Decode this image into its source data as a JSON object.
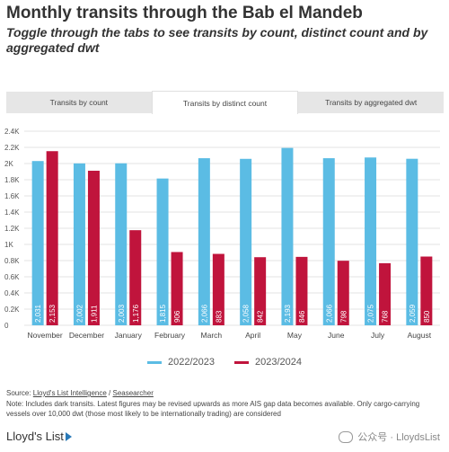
{
  "title": "Monthly transits through the Bab el Mandeb",
  "subtitle": "Toggle through the tabs to see transits by count, distinct count and by aggregated dwt",
  "tabs": [
    {
      "label": "Transits by count"
    },
    {
      "label": "Transits by distinct count"
    },
    {
      "label": "Transits by aggregated dwt"
    }
  ],
  "active_tab": 1,
  "colors": {
    "series_2022_2023": "#5bbce4",
    "series_2023_2024": "#c0143c"
  },
  "chart_data": {
    "type": "bar",
    "categories": [
      "November",
      "December",
      "January",
      "February",
      "March",
      "April",
      "May",
      "June",
      "July",
      "August"
    ],
    "series": [
      {
        "name": "2022/2023",
        "values": [
          2031,
          2002,
          2003,
          1815,
          2066,
          2058,
          2193,
          2066,
          2075,
          2059
        ],
        "labels": [
          "2,031",
          "2,002",
          "2,003",
          "1,815",
          "2,066",
          "2,058",
          "2,193",
          "2,066",
          "2,075",
          "2,059"
        ]
      },
      {
        "name": "2023/2024",
        "values": [
          2153,
          1911,
          1176,
          906,
          883,
          842,
          846,
          798,
          768,
          850
        ],
        "labels": [
          "2,153",
          "1,911",
          "1,176",
          "906",
          "883",
          "842",
          "846",
          "798",
          "768",
          "850"
        ]
      }
    ],
    "yticks": [
      0,
      200,
      400,
      600,
      800,
      1000,
      1200,
      1400,
      1600,
      1800,
      2000,
      2200,
      2400
    ],
    "ytick_labels": [
      "0",
      "0.2K",
      "0.4K",
      "0.6K",
      "0.8K",
      "1K",
      "1.2K",
      "1.4K",
      "1.6K",
      "1.8K",
      "2K",
      "2.2K",
      "2.4K"
    ],
    "ylim": [
      0,
      2400
    ],
    "grid": true,
    "legend_position": "bottom"
  },
  "source": {
    "prefix": "Source: ",
    "link1": "Lloyd's List Intelligence",
    "sep": " / ",
    "link2": "Seasearcher"
  },
  "note": "Note: Includes dark transits. Latest figures may be revised upwards as more AIS gap data becomes available. Only cargo-carrying vessels over 10,000 dwt (those most likely to be internationally trading) are considered",
  "footer": {
    "logo_text": "Lloyd's List",
    "watermark": "公众号 · LloydsList"
  }
}
